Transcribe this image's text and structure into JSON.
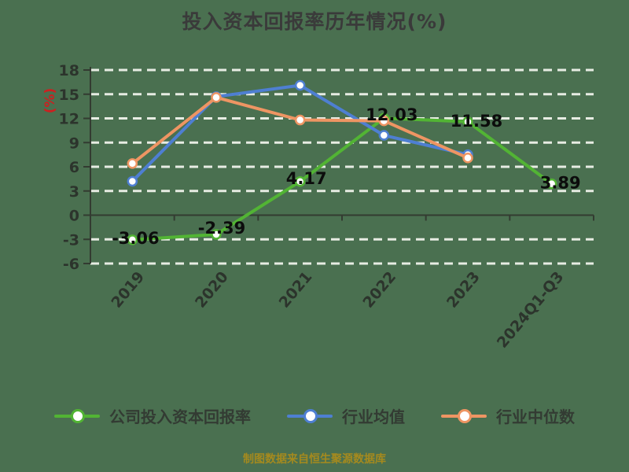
{
  "title": "投入资本回报率历年情况(%)",
  "footer": "制图数据来自恒生聚源数据库",
  "colors": {
    "bg": "#4a7050",
    "title": "#3a3a3a",
    "grid": "#e7ece3",
    "axis": "#333b31",
    "tick-text": "#2c342c",
    "value-label": "#0c0c0c",
    "legend-text": "#333b33",
    "footer-text": "#a58a1e",
    "ylabel": "#cc2020"
  },
  "chart_data": {
    "type": "line",
    "title": "投入资本回报率历年情况(%)",
    "xlabel": "",
    "ylabel": "(%)",
    "categories": [
      "2019",
      "2020",
      "2021",
      "2022",
      "2023",
      "2024Q1-Q3"
    ],
    "y_ticks": [
      18,
      15,
      12,
      9,
      6,
      3,
      0,
      -3,
      -6
    ],
    "ylim": [
      -6,
      18
    ],
    "grid": "horizontal-dashed-white",
    "legend_position": "bottom",
    "series": [
      {
        "name": "公司投入资本回报率",
        "color": "#52b434",
        "values": [
          -3.06,
          -2.39,
          4.17,
          12.03,
          11.58,
          3.89
        ],
        "point_labels": [
          "-3.06",
          "-2.39",
          "4.17",
          "12.03",
          "11.58",
          "3.89"
        ]
      },
      {
        "name": "行业均值",
        "color": "#4e7fd2",
        "values": [
          4.2,
          14.7,
          16.1,
          9.9,
          7.5,
          null
        ],
        "point_labels": []
      },
      {
        "name": "行业中位数",
        "color": "#ee9563",
        "values": [
          6.4,
          14.6,
          11.8,
          11.7,
          7.1,
          null
        ],
        "point_labels": []
      }
    ]
  }
}
